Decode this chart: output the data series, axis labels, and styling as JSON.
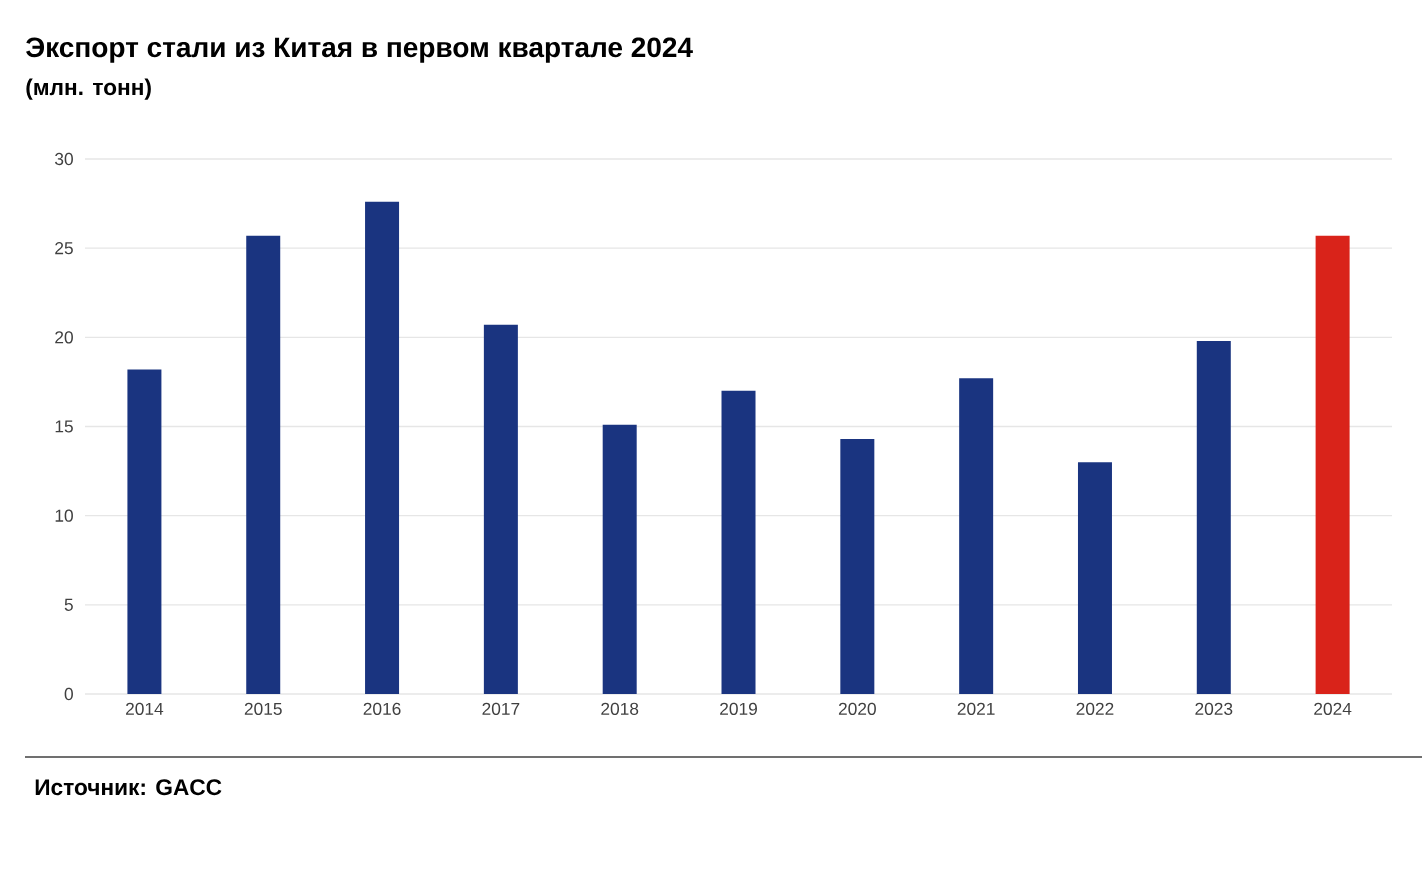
{
  "chart_data": {
    "type": "bar",
    "title": "Экспорт стали из Китая в первом квартале 2024",
    "subtitle": "(млн. тонн)",
    "categories": [
      "2014",
      "2015",
      "2016",
      "2017",
      "2018",
      "2019",
      "2020",
      "2021",
      "2022",
      "2023",
      "2024"
    ],
    "values": [
      18.2,
      25.7,
      27.6,
      20.7,
      15.1,
      17.0,
      14.3,
      17.7,
      13.0,
      19.8,
      25.7
    ],
    "colors": [
      "#1a3480",
      "#1a3480",
      "#1a3480",
      "#1a3480",
      "#1a3480",
      "#1a3480",
      "#1a3480",
      "#1a3480",
      "#1a3480",
      "#1a3480",
      "#d9231a"
    ],
    "ylim": [
      0,
      30
    ],
    "yticks": [
      0,
      5,
      10,
      15,
      20,
      25,
      30
    ],
    "grid": "y",
    "annotations": [
      "Источник: GACC"
    ]
  }
}
